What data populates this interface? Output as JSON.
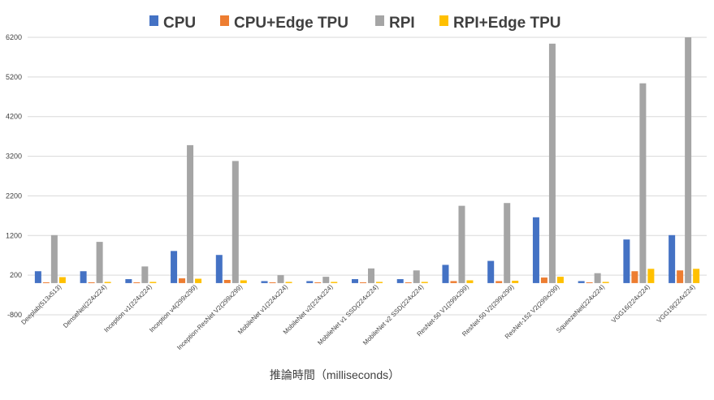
{
  "chart_data": {
    "type": "bar",
    "title": "",
    "xlabel": "推論時間（milliseconds）",
    "ylabel": "",
    "ylim": [
      -800,
      6200
    ],
    "yticks": [
      -800,
      200,
      1200,
      2200,
      3200,
      4200,
      5200,
      6200
    ],
    "grid": true,
    "legend_position": "top",
    "categories": [
      "Deeplab(513x513)",
      "DenseNet(224x224)",
      "Inception v1(224x224)",
      "Inception v4(299x299)",
      "Inception-ResNet V2(299x299)",
      "MobileNet v1(224x224)",
      "MobileNet v2(224x224)",
      "MobileNet v1 SSD(224x224)",
      "MobileNet v2 SSD(224x224)",
      "ResNet-50 V1(299x299)",
      "ResNet-50 V2(299x299)",
      "ResNet-152 V2(299x299)",
      "SqueezeNet(224x224)",
      "VGG16(224x224)",
      "VGG19(224x224)"
    ],
    "series": [
      {
        "name": "CPU",
        "color": "#4472c4",
        "values": [
          300,
          300,
          100,
          810,
          710,
          50,
          50,
          100,
          100,
          460,
          560,
          1660,
          50,
          1100,
          1210
        ]
      },
      {
        "name": "CPU+Edge TPU",
        "color": "#ed7d31",
        "values": [
          20,
          20,
          20,
          120,
          80,
          20,
          20,
          20,
          20,
          50,
          50,
          140,
          20,
          300,
          320
        ]
      },
      {
        "name": "RPI",
        "color": "#a5a5a5",
        "values": [
          1210,
          1040,
          420,
          3480,
          3080,
          200,
          160,
          370,
          320,
          1950,
          2020,
          6040,
          250,
          5040,
          6200
        ]
      },
      {
        "name": "RPI+Edge TPU",
        "color": "#ffc000",
        "values": [
          150,
          30,
          30,
          110,
          70,
          30,
          30,
          30,
          30,
          70,
          60,
          160,
          30,
          360,
          360
        ]
      }
    ]
  }
}
